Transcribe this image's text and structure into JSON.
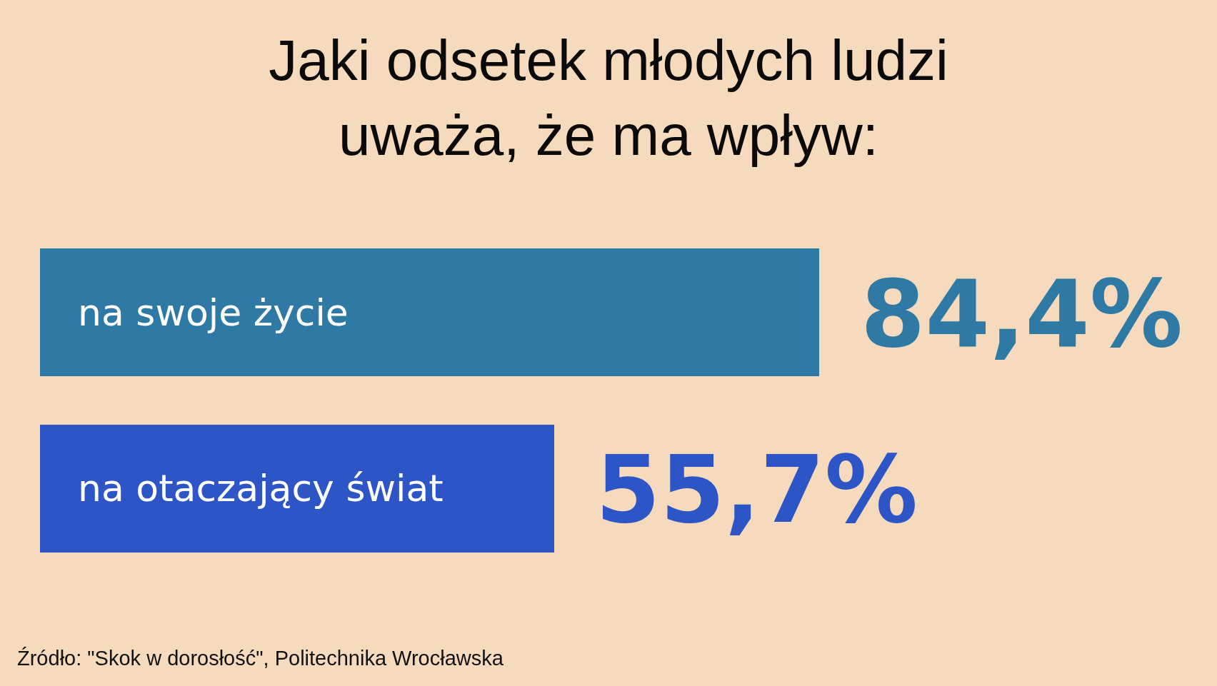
{
  "chart_data": {
    "type": "bar",
    "orientation": "horizontal",
    "title": "Jaki odsetek młodych ludzi uważa, że ma wpływ:",
    "categories": [
      "na swoje życie",
      "na otaczający świat"
    ],
    "values": [
      84.4,
      55.7
    ],
    "colors": [
      "#2e7aa4",
      "#2d55c6"
    ],
    "value_labels": [
      "84,4%",
      "55,7%"
    ],
    "annotations": [
      "Źródło: \"Skok w dorosłość\", Politechnika Wrocławska"
    ]
  }
}
